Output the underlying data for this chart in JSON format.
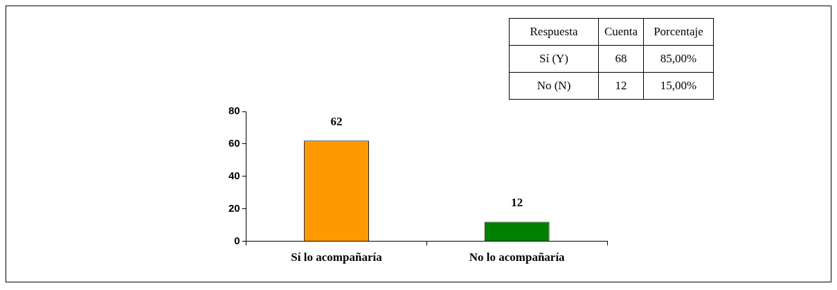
{
  "chart_data": {
    "type": "bar",
    "categories": [
      "Sí lo acompañaría",
      "No lo acompañaría"
    ],
    "values": [
      62,
      12
    ],
    "colors": [
      "#ff9900",
      "#008000"
    ],
    "ylim": [
      0,
      80
    ],
    "yticks": [
      0,
      20,
      40,
      60,
      80
    ],
    "grid": false,
    "legend": false,
    "data_labels": true,
    "annotations": [
      "Respuesta",
      "Cuenta",
      "Porcentaje",
      "Sí (Y)",
      "68",
      "85,00%",
      "No (N)",
      "12",
      "15,00%"
    ]
  }
}
